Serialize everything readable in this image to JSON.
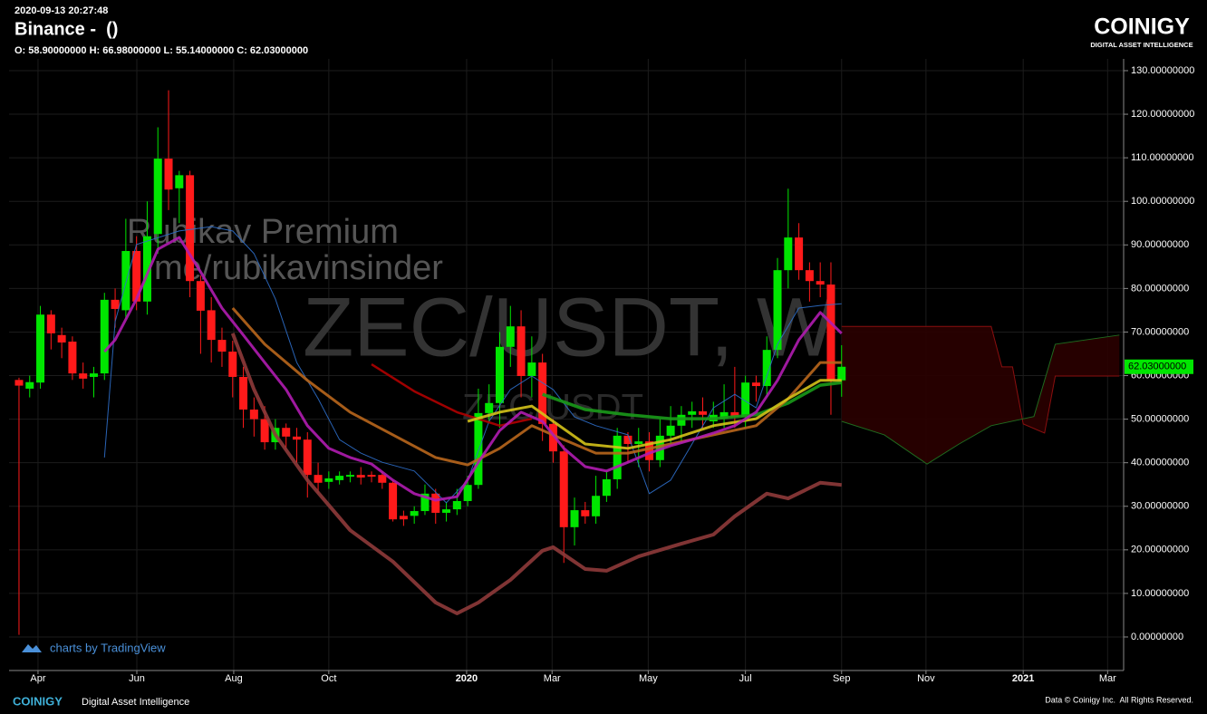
{
  "header": {
    "timestamp": "2020-09-13 20:27:48",
    "exchange": "Binance -  ()",
    "ohlc": "O: 58.90000000 H: 66.98000000 L: 55.14000000 C: 62.03000000",
    "logo": "COINIGY",
    "logo_tagline": "DIGITAL ASSET INTELLIGENCE"
  },
  "footer": {
    "brand": "COINIGY",
    "tagline": "Digital Asset Intelligence",
    "copyright": "Data © Coinigy Inc.  All Rights Reserved.",
    "credit": "charts by TradingView"
  },
  "chart_data": {
    "type": "candlestick",
    "watermarks": [
      "ZEC/USDT, W",
      "ZEC/USDT",
      "Rubikav Premium",
      "me/rubikavinsinder"
    ],
    "x": [
      0,
      1,
      2,
      3,
      4,
      5,
      6,
      7,
      8,
      9,
      10,
      11,
      12,
      13,
      14,
      15,
      16,
      17,
      18,
      19,
      20,
      21,
      22,
      23,
      24,
      25,
      26,
      27,
      28,
      29,
      30,
      31,
      32,
      33,
      34,
      35,
      36,
      37,
      38,
      39,
      40,
      41,
      42,
      43,
      44,
      45,
      46,
      47,
      48,
      49,
      50,
      51,
      52,
      53,
      54,
      55,
      56,
      57,
      58,
      59,
      60,
      61,
      62,
      63,
      64,
      65,
      66,
      67,
      68,
      69,
      70,
      71,
      72,
      73,
      74,
      75,
      76,
      77
    ],
    "open": [
      59,
      57,
      58.4,
      74,
      69.3,
      67.8,
      60.5,
      59.7,
      60.5,
      77.4,
      75,
      88.6,
      77,
      92.5,
      109.8,
      103,
      106,
      81.7,
      75,
      68.2,
      65.5,
      59.7,
      52.2,
      50,
      44.7,
      48,
      46,
      45.3,
      37.2,
      35.6,
      36,
      36.8,
      37.2,
      37.2,
      37.2,
      35.4,
      27.8,
      27.8,
      28.9,
      32.9,
      28.5,
      29.3,
      31.2,
      34.9,
      51.4,
      53.7,
      66.6,
      71.3,
      59.9,
      63,
      48.9,
      42.6,
      25.2,
      29.1,
      27.7,
      32.4,
      36.2,
      46.2,
      44.3,
      44.9,
      40.6,
      46.2,
      48.5,
      51,
      51.8,
      49.5,
      50.1,
      51.6,
      50.5,
      58.4,
      57.6,
      65.9,
      84.2,
      91.7,
      84.2,
      81.7,
      80.9,
      58.9
    ],
    "high": [
      59.5,
      60,
      76,
      75,
      71,
      69,
      63,
      62,
      79,
      80,
      96,
      92,
      100,
      117,
      125.5,
      107,
      107,
      83,
      78,
      71,
      68,
      62,
      55,
      53,
      50,
      49,
      48,
      47,
      40,
      38,
      38,
      38,
      39,
      38,
      38,
      36,
      29,
      30,
      35,
      34,
      31,
      34,
      37,
      57,
      58,
      70,
      76,
      75,
      69,
      65,
      50,
      44,
      32,
      31,
      37,
      38,
      48,
      47,
      48,
      47,
      50,
      53,
      53,
      54,
      55,
      54,
      58,
      62,
      60,
      60,
      69,
      87,
      102.9,
      95,
      86,
      86,
      86,
      66.98
    ],
    "low": [
      0.5,
      55,
      57,
      66,
      64,
      59,
      57,
      55,
      59,
      71,
      73,
      75,
      74,
      88,
      98,
      95,
      78,
      65,
      63,
      62,
      55,
      48,
      46,
      43,
      43,
      43,
      40,
      32,
      33,
      34,
      35,
      35.5,
      35,
      35.5,
      34,
      26.5,
      25.5,
      26,
      28,
      26,
      26.5,
      28,
      30,
      34,
      49,
      48,
      62,
      55,
      55,
      45,
      40,
      17,
      21,
      26,
      26,
      31,
      34,
      40,
      39,
      38,
      39,
      44,
      45,
      48,
      48,
      48,
      48,
      48,
      48,
      54,
      55,
      64,
      80,
      82,
      77,
      78,
      51,
      55.14
    ],
    "close": [
      57.7,
      58.5,
      74,
      69.7,
      67.6,
      60.5,
      59.3,
      60.5,
      77.4,
      75.3,
      88.6,
      77,
      92,
      109.8,
      102.7,
      106,
      81.7,
      74.9,
      68.2,
      65.5,
      59.7,
      52.2,
      50,
      44.7,
      48,
      46,
      45.3,
      37.2,
      35.4,
      36.4,
      37,
      37.2,
      36.6,
      36.8,
      35.4,
      27,
      27,
      28.9,
      32.9,
      28.5,
      29.3,
      31.2,
      34.9,
      51.4,
      53.7,
      66.6,
      71.3,
      59.9,
      63,
      48.9,
      42.6,
      25.2,
      29.1,
      27.7,
      32.4,
      36.2,
      46.2,
      44.3,
      44.9,
      40.6,
      46.2,
      48.5,
      51,
      51.8,
      51,
      51,
      51.6,
      50.5,
      58.4,
      57.6,
      65.9,
      84.2,
      91.7,
      84.2,
      81.7,
      80.9,
      58.9,
      62.03
    ],
    "up_color": "#00e600",
    "down_color": "#ff1a1a",
    "last_label": "62.03000000",
    "last_color": "#00e600",
    "cloud_fill": "#2a0000",
    "cloud": [
      {
        "color": "#8a0f0f",
        "x": [
          77,
          91,
          92,
          93,
          94,
          96,
          97,
          103
        ],
        "values": [
          71.3,
          71.3,
          62,
          62,
          48.9,
          46.8,
          59.9,
          59.9
        ]
      },
      {
        "color": "#1f6b1f",
        "x": [
          77,
          81,
          85,
          88,
          91,
          95,
          97,
          103
        ],
        "values": [
          49.5,
          46.4,
          39.7,
          44.3,
          48.5,
          50.6,
          67.2,
          69.3
        ]
      }
    ],
    "lines": [
      {
        "color": "#8e3a3a",
        "width": 4,
        "x": [
          20,
          22,
          24,
          27,
          31,
          35,
          39,
          41,
          43,
          46,
          49,
          50,
          53,
          55,
          58,
          62,
          65,
          67,
          70,
          72,
          75,
          77
        ],
        "values": [
          69.7,
          56.8,
          46.4,
          36,
          24.5,
          17.3,
          7.9,
          5.4,
          7.9,
          13.1,
          19.8,
          20.6,
          15.6,
          15.2,
          18.5,
          21.4,
          23.5,
          27.7,
          32.9,
          31.8,
          35.4,
          34.9
        ]
      },
      {
        "color": "#2d6ec9",
        "width": 1,
        "x": [
          8,
          9,
          11,
          15,
          18,
          20,
          22,
          24,
          26,
          28,
          30,
          32,
          34,
          37,
          40,
          42,
          44,
          46,
          48,
          50,
          52,
          54,
          57,
          59,
          61,
          63,
          65,
          67,
          69,
          71,
          73,
          75,
          77
        ],
        "values": [
          41.2,
          72.4,
          90.1,
          93.2,
          94.2,
          93.2,
          88,
          77.6,
          63,
          54.7,
          45.3,
          42.2,
          40.1,
          38.1,
          30.8,
          36,
          49.5,
          56.8,
          59.9,
          56.8,
          50.5,
          48.5,
          46.4,
          32.9,
          36,
          44.3,
          52.6,
          55.7,
          52.6,
          67.2,
          75.5,
          76.1,
          76.5
        ]
      },
      {
        "color": "#b00000",
        "width": 2.5,
        "x": [
          33,
          37,
          41,
          45,
          48
        ],
        "values": [
          62.6,
          56.4,
          51.6,
          48.5,
          50.1
        ]
      },
      {
        "color": "#1a9a1a",
        "width": 3.5,
        "x": [
          49,
          53,
          57,
          61,
          65,
          69,
          72,
          75,
          77
        ],
        "values": [
          55.7,
          52.2,
          51,
          50.1,
          50.1,
          51,
          53.7,
          57.8,
          58.4
        ]
      },
      {
        "color": "#b8661c",
        "width": 3,
        "x": [
          20,
          23,
          27,
          31,
          35,
          39,
          42,
          45,
          48,
          51,
          54,
          57,
          61,
          65,
          69,
          72,
          75,
          77
        ],
        "values": [
          75.5,
          67.2,
          58.9,
          51.6,
          46.4,
          41.2,
          39.5,
          43.3,
          48.5,
          45.3,
          42.2,
          42.2,
          44.3,
          46.4,
          48.5,
          54.7,
          63,
          63
        ]
      },
      {
        "color": "#d4c21a",
        "width": 3,
        "x": [
          42,
          45,
          48,
          50,
          53,
          57,
          61,
          65,
          69,
          72,
          75,
          77
        ],
        "values": [
          49.5,
          51.6,
          53,
          49.5,
          44.3,
          43.3,
          45.3,
          48.5,
          50.1,
          54.7,
          58.9,
          58.9
        ]
      },
      {
        "color": "#b01cb0",
        "width": 3,
        "x": [
          8,
          9,
          11,
          13,
          15,
          17,
          19,
          21,
          23,
          25,
          27,
          29,
          31,
          33,
          35,
          37,
          39,
          41,
          43,
          45,
          47,
          49,
          51,
          53,
          55,
          57,
          59,
          61,
          63,
          65,
          67,
          69,
          71,
          73,
          75,
          77
        ],
        "values": [
          65.5,
          68.2,
          77.6,
          89,
          91.7,
          83.8,
          75.5,
          69.3,
          63,
          56.8,
          48.5,
          43.3,
          41.2,
          39.7,
          36,
          32.9,
          31.4,
          32.2,
          40.1,
          47.4,
          51.6,
          49.5,
          43.3,
          39.1,
          38.1,
          40.1,
          42.2,
          43.9,
          45.3,
          46.8,
          48.5,
          51.6,
          58.9,
          68.2,
          74.5,
          69.7
        ]
      }
    ],
    "xlim": [
      -0.93,
      103.4
    ],
    "xticks": [
      {
        "value": 1.78,
        "label": "Apr"
      },
      {
        "value": 11.03,
        "label": "Jun"
      },
      {
        "value": 20.1,
        "label": "Aug"
      },
      {
        "value": 29,
        "label": "Oct"
      },
      {
        "value": 41.9,
        "label": "2020"
      },
      {
        "value": 49.9,
        "label": "Mar"
      },
      {
        "value": 58.9,
        "label": "May"
      },
      {
        "value": 68,
        "label": "Jul"
      },
      {
        "value": 77,
        "label": "Sep"
      },
      {
        "value": 84.9,
        "label": "Nov"
      },
      {
        "value": 94,
        "label": "2021"
      },
      {
        "value": 101.9,
        "label": "Mar"
      }
    ],
    "ylim": [
      -7.7,
      132.7
    ],
    "yticks": [
      {
        "value": 0,
        "label": "0.00000000"
      },
      {
        "value": 10,
        "label": "10.00000000"
      },
      {
        "value": 20,
        "label": "20.00000000"
      },
      {
        "value": 30,
        "label": "30.00000000"
      },
      {
        "value": 40,
        "label": "40.00000000"
      },
      {
        "value": 50,
        "label": "50.00000000"
      },
      {
        "value": 60,
        "label": "60.00000000"
      },
      {
        "value": 70,
        "label": "70.00000000"
      },
      {
        "value": 80,
        "label": "80.00000000"
      },
      {
        "value": 90,
        "label": "90.00000000"
      },
      {
        "value": 100,
        "label": "100.00000000"
      },
      {
        "value": 110,
        "label": "110.00000000"
      },
      {
        "value": 120,
        "label": "120.00000000"
      },
      {
        "value": 130,
        "label": "130.00000000"
      }
    ],
    "grid": true
  }
}
